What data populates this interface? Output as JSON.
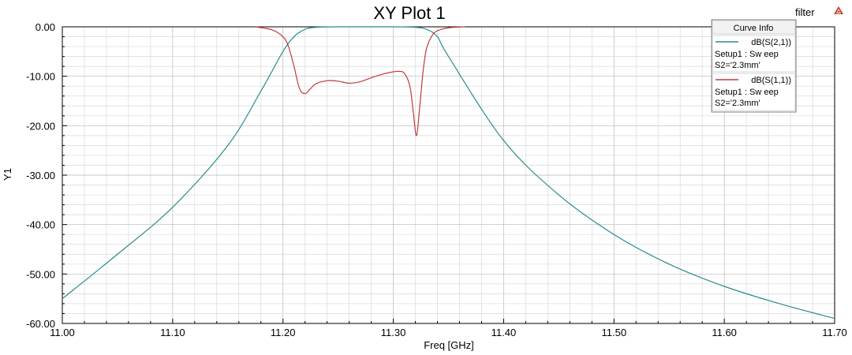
{
  "project_name": "filter",
  "colors": {
    "s21": "#2a8c8c",
    "s11": "#c03a3a",
    "grid": "#d9d9d9",
    "grid_major": "#b8b8b8",
    "logo": "#c0392b"
  },
  "icons": {
    "logo": "ansys-triangle-logo-icon"
  },
  "legend": {
    "title": "Curve Info",
    "entries": [
      {
        "name": "dB(S(2,1))",
        "line2": "Setup1 : Sw eep",
        "line3": "S2='2.3mm'",
        "color": "#2a8c8c"
      },
      {
        "name": "dB(S(1,1))",
        "line2": "Setup1 : Sw eep",
        "line3": "S2='2.3mm'",
        "color": "#c03a3a"
      }
    ]
  },
  "chart_data": {
    "type": "line",
    "title": "XY Plot 1",
    "xlabel": "Freq [GHz]",
    "ylabel": "Y1",
    "xlim": [
      11.0,
      11.7
    ],
    "ylim": [
      -60,
      0
    ],
    "xticks": [
      "11.00",
      "11.10",
      "11.20",
      "11.30",
      "11.40",
      "11.50",
      "11.60",
      "11.70"
    ],
    "yticks": [
      "0.00",
      "-10.00",
      "-20.00",
      "-30.00",
      "-40.00",
      "-50.00",
      "-60.00"
    ],
    "grid": true,
    "legend_position": "top-right",
    "series": [
      {
        "name": "dB(S(2,1))",
        "x": [
          11.0,
          11.05,
          11.1,
          11.15,
          11.18,
          11.2,
          11.21,
          11.22,
          11.23,
          11.25,
          11.3,
          11.32,
          11.33,
          11.34,
          11.35,
          11.4,
          11.45,
          11.5,
          11.55,
          11.6,
          11.65,
          11.7
        ],
        "y": [
          -55.0,
          -46.0,
          -36.5,
          -24.0,
          -13.0,
          -5.0,
          -2.0,
          -0.5,
          -0.1,
          0.0,
          0.0,
          -0.1,
          -0.5,
          -2.0,
          -6.0,
          -23.0,
          -34.0,
          -42.0,
          -48.0,
          -52.5,
          -56.0,
          -59.0
        ]
      },
      {
        "name": "dB(S(1,1))",
        "x": [
          11.175,
          11.19,
          11.2,
          11.205,
          11.21,
          11.215,
          11.22,
          11.225,
          11.23,
          11.24,
          11.25,
          11.26,
          11.27,
          11.28,
          11.29,
          11.3,
          11.305,
          11.31,
          11.315,
          11.318,
          11.321,
          11.324,
          11.327,
          11.33,
          11.335,
          11.34,
          11.35,
          11.365
        ],
        "y": [
          0.0,
          -0.6,
          -2.0,
          -4.0,
          -8.0,
          -12.5,
          -13.5,
          -12.5,
          -11.5,
          -10.9,
          -11.0,
          -11.4,
          -11.1,
          -10.3,
          -9.6,
          -9.1,
          -9.0,
          -9.4,
          -12.0,
          -17.0,
          -22.0,
          -16.0,
          -9.0,
          -4.5,
          -1.8,
          -0.8,
          -0.2,
          0.0
        ]
      }
    ]
  }
}
